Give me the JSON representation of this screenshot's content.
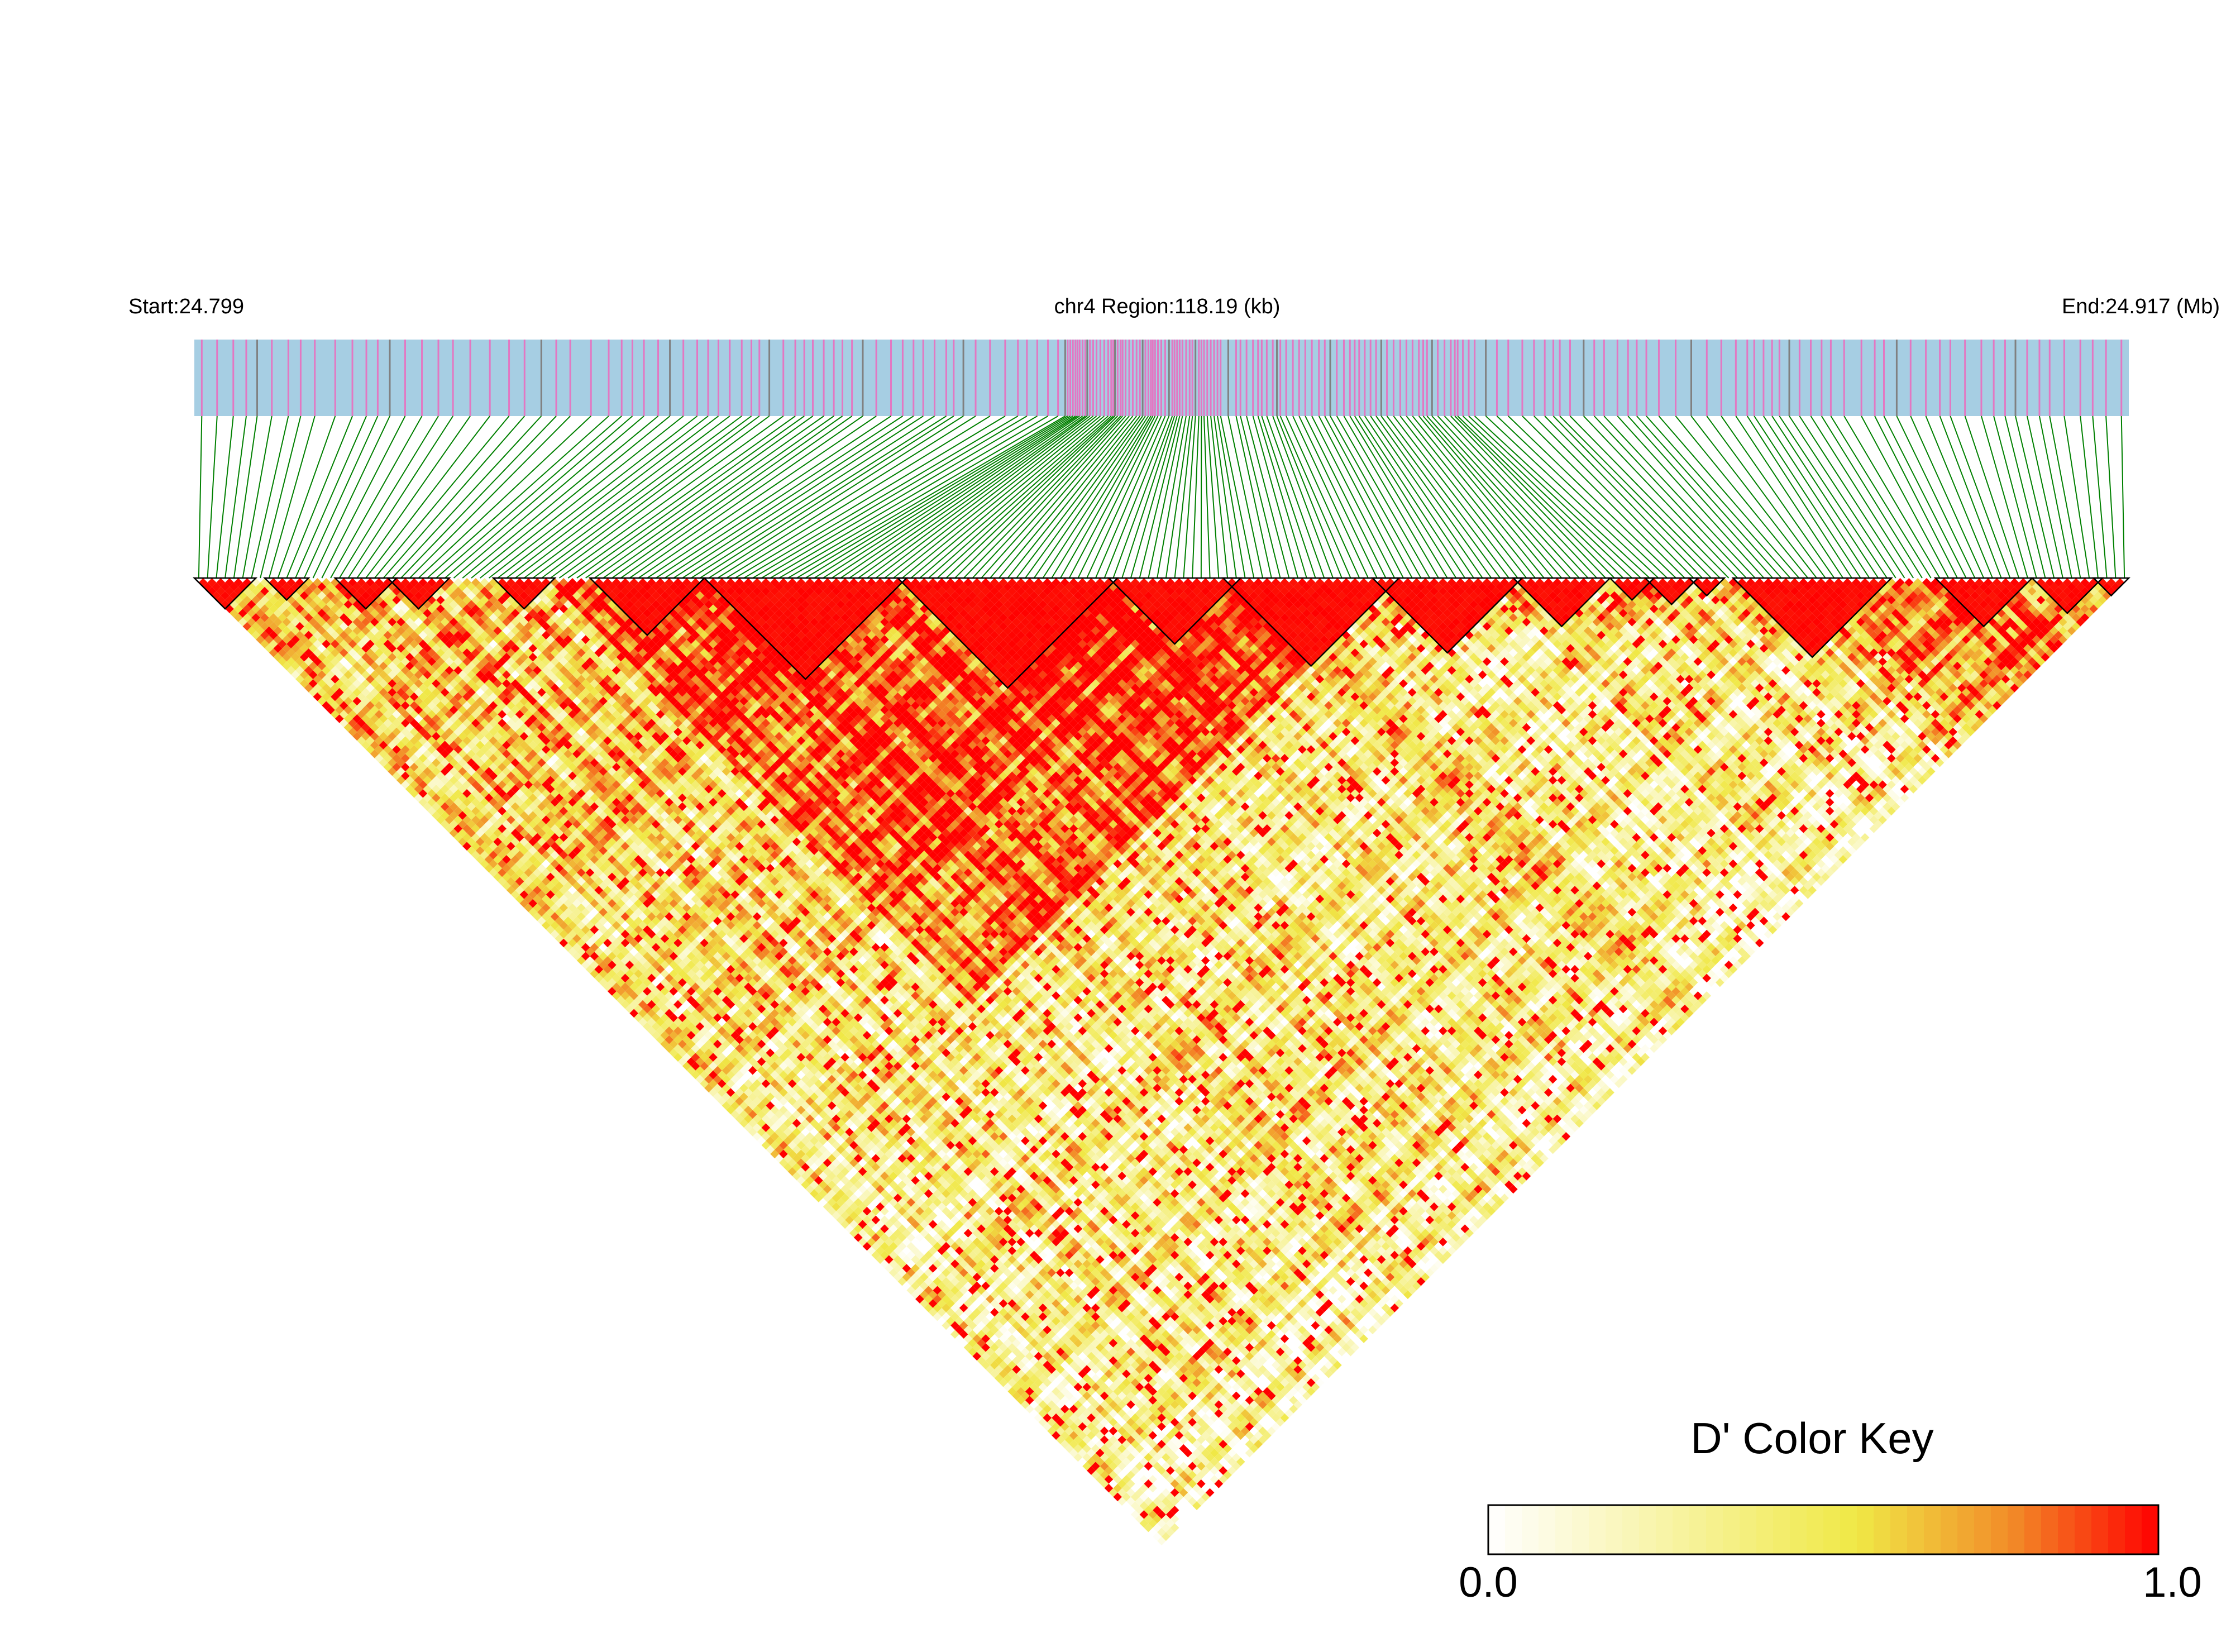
{
  "chart_data": {
    "type": "heatmap",
    "subtype": "LD block triangle heatmap",
    "chromosome": "chr4",
    "region_label": "chr4 Region:118.19 (kb)",
    "start_label": "Start:24.799",
    "end_label": "End:24.917 (Mb)",
    "start_mb": 24.799,
    "end_mb": 24.917,
    "region_kb": 118.19,
    "n_snps_approx": 220,
    "color_key": {
      "title": "D' Color Key",
      "min_label": "0.0",
      "max_label": "1.0",
      "min": 0.0,
      "max": 1.0,
      "colors": [
        "#ffffff",
        "#f5ec4f",
        "#f29a2e",
        "#ff0000"
      ]
    },
    "snp_track_colors": {
      "background": "#a6cee3",
      "snp_marks": "#e377c2",
      "dense_marks": "#808080",
      "connector_lines": "#008000"
    },
    "haplotype_blocks_approx_snp_ranges": [
      [
        0,
        6
      ],
      [
        8,
        12
      ],
      [
        16,
        22
      ],
      [
        22,
        28
      ],
      [
        34,
        40
      ],
      [
        45,
        57
      ],
      [
        58,
        80
      ],
      [
        80,
        104
      ],
      [
        104,
        118
      ],
      [
        117,
        136
      ],
      [
        134,
        150
      ],
      [
        150,
        160
      ],
      [
        161,
        165
      ],
      [
        165,
        170
      ],
      [
        170,
        173
      ],
      [
        175,
        192
      ],
      [
        198,
        208
      ],
      [
        209,
        216
      ],
      [
        216,
        219
      ]
    ]
  }
}
